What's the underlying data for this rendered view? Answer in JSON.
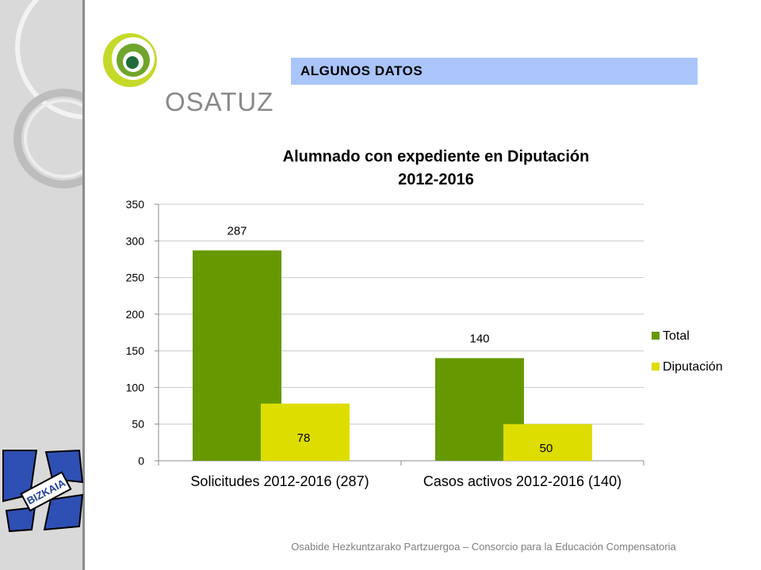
{
  "header": {
    "title": "ALGUNOS DATOS"
  },
  "logo": {
    "text": "OSATUZ"
  },
  "bizkaia": {
    "text": "BIZKAIA"
  },
  "footer": {
    "text": "Osabide Hezkuntzarako Partzuergoa – Consorcio para la Educación Compensatoria"
  },
  "colors": {
    "total": "#669900",
    "diputacion": "#dddd00",
    "header_bg": "#a9c5fa"
  },
  "chart_data": {
    "type": "bar",
    "title_line1": "Alumnado con expediente en Diputación",
    "title_line2": "2012-2016",
    "categories": [
      "Solicitudes 2012-2016 (287)",
      "Casos activos 2012-2016 (140)"
    ],
    "series": [
      {
        "name": "Total",
        "values": [
          287,
          140
        ],
        "color": "#669900"
      },
      {
        "name": "Diputación",
        "values": [
          78,
          50
        ],
        "color": "#dddd00"
      }
    ],
    "ylim": [
      0,
      350
    ],
    "yticks": [
      0,
      50,
      100,
      150,
      200,
      250,
      300,
      350
    ],
    "grid": true,
    "legend": "right"
  }
}
